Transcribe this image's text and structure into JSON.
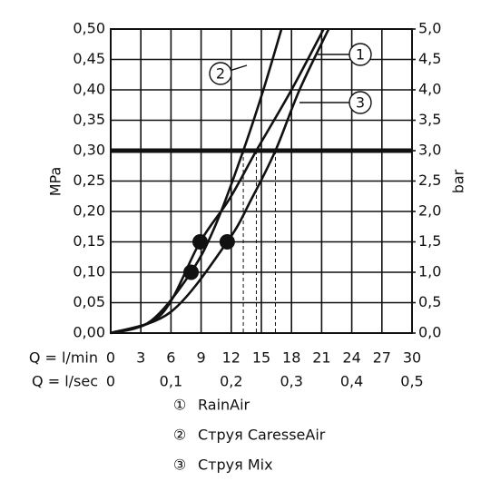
{
  "chart_data": {
    "type": "line",
    "ylabel": "MPa",
    "y2label": "bar",
    "xlabel": "Q = l/min",
    "x2label": "Q = l/sec",
    "xlim": [
      0,
      30
    ],
    "xticks": [
      0,
      3,
      6,
      9,
      12,
      15,
      18,
      21,
      24,
      27,
      30
    ],
    "x2lim": [
      0,
      0.5
    ],
    "x2ticks": [
      0,
      {
        "value": 0.1,
        "label": "0,1"
      },
      {
        "value": 0.2,
        "label": "0,2"
      },
      {
        "value": 0.3,
        "label": "0,3"
      },
      {
        "value": 0.4,
        "label": "0,4"
      },
      {
        "value": 0.5,
        "label": "0,5"
      }
    ],
    "ylim": [
      0,
      0.5
    ],
    "yticks": [
      {
        "value": 0,
        "label": "0,00"
      },
      {
        "value": 0.05,
        "label": "0,05"
      },
      {
        "value": 0.1,
        "label": "0,10"
      },
      {
        "value": 0.15,
        "label": "0,15"
      },
      {
        "value": 0.2,
        "label": "0,20"
      },
      {
        "value": 0.25,
        "label": "0,25"
      },
      {
        "value": 0.3,
        "label": "0,30"
      },
      {
        "value": 0.35,
        "label": "0,35"
      },
      {
        "value": 0.4,
        "label": "0,40"
      },
      {
        "value": 0.45,
        "label": "0,45"
      },
      {
        "value": 0.5,
        "label": "0,50"
      }
    ],
    "y2lim": [
      0,
      5
    ],
    "y2ticks": [
      {
        "value": 0,
        "label": "0,0"
      },
      {
        "value": 0.5,
        "label": "0,5"
      },
      {
        "value": 1,
        "label": "1,0"
      },
      {
        "value": 1.5,
        "label": "1,5"
      },
      {
        "value": 2,
        "label": "2,0"
      },
      {
        "value": 2.5,
        "label": "2,5"
      },
      {
        "value": 3,
        "label": "3,0"
      },
      {
        "value": 3.5,
        "label": "3,5"
      },
      {
        "value": 4,
        "label": "4,0"
      },
      {
        "value": 4.5,
        "label": "4,5"
      },
      {
        "value": 5,
        "label": "5,0"
      }
    ],
    "grid": true,
    "reference_y": 0.3,
    "series": [
      {
        "name": "RainAir",
        "tag": "1",
        "legend_symbol": "①",
        "color": "#111111",
        "x": [
          0,
          5,
          8.9,
          11.8,
          14.5,
          18,
          21.2
        ],
        "y": [
          0,
          0.03,
          0.15,
          0.22,
          0.3,
          0.4,
          0.5
        ],
        "marker": {
          "x": 8.9,
          "y": 0.15
        }
      },
      {
        "name": "Струя CaresseAir",
        "tag": "2",
        "legend_symbol": "②",
        "color": "#111111",
        "x": [
          0,
          4,
          8,
          10.5,
          13.2,
          15.2,
          17
        ],
        "y": [
          0,
          0.02,
          0.1,
          0.18,
          0.3,
          0.4,
          0.5
        ],
        "marker": {
          "x": 8,
          "y": 0.1
        }
      },
      {
        "name": "Струя Mix",
        "tag": "3",
        "legend_symbol": "③",
        "color": "#111111",
        "x": [
          0,
          6,
          11.6,
          14,
          16.4,
          18.8,
          21.7
        ],
        "y": [
          0,
          0.035,
          0.15,
          0.22,
          0.3,
          0.4,
          0.5
        ],
        "marker": {
          "x": 11.6,
          "y": 0.15
        }
      }
    ]
  }
}
